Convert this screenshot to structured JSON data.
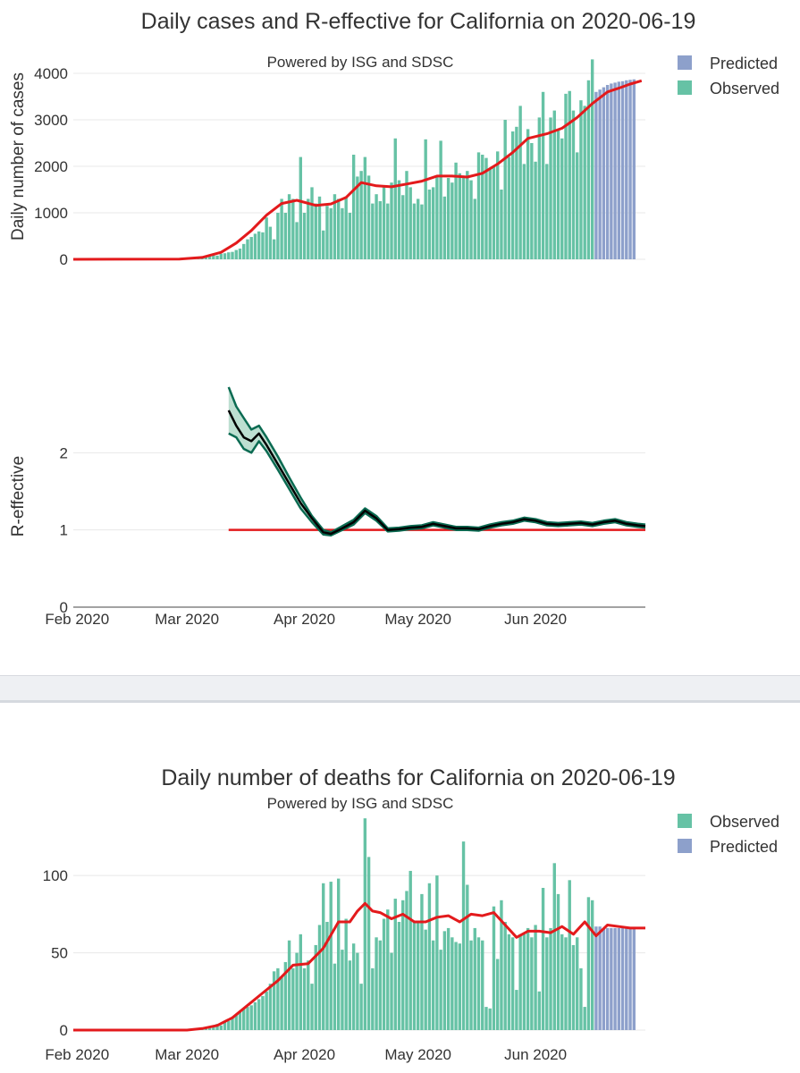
{
  "colors": {
    "observed": "#66c2a5",
    "predicted": "#8da0cb",
    "trend": "#e31a1c",
    "reff_band_fill": "#bddfd1",
    "reff_band_line": "#0b6b52",
    "reff_line": "#000000",
    "grid": "#e8e8e8"
  },
  "chart_data": [
    {
      "type": "bar",
      "name": "cases",
      "title": "Daily cases and R-effective for California on 2020-06-19",
      "annotation": "Powered by ISG and SDSC",
      "ylabel": "Daily number of cases",
      "ylim": [
        0,
        4500
      ],
      "yticks": [
        0,
        1000,
        2000,
        3000,
        4000
      ],
      "xrange": [
        "2020-01-31",
        "2020-06-30"
      ],
      "legend": [
        "Predicted",
        "Observed"
      ],
      "observed_start": "2020-02-28",
      "observed": [
        10,
        15,
        20,
        25,
        35,
        30,
        45,
        55,
        70,
        90,
        80,
        120,
        130,
        150,
        160,
        200,
        230,
        330,
        430,
        480,
        550,
        600,
        580,
        900,
        700,
        430,
        1000,
        1300,
        1000,
        1400,
        1300,
        800,
        2200,
        1000,
        1300,
        1550,
        1200,
        1350,
        620,
        1150,
        1100,
        1400,
        1300,
        1100,
        1330,
        1000,
        2250,
        1780,
        1900,
        2200,
        1800,
        1200,
        1400,
        1250,
        1580,
        1200,
        1650,
        2600,
        1700,
        1380,
        1900,
        1550,
        1200,
        1300,
        1180,
        2580,
        1500,
        1550,
        1800,
        2550,
        1350,
        1750,
        1650,
        2080,
        1850,
        1800,
        1900,
        1700,
        1300,
        2300,
        2250,
        2180,
        1950,
        2000,
        2320,
        1500,
        3000,
        2200,
        2750,
        2850,
        3300,
        2050,
        2800,
        2500,
        2100,
        3050,
        3600,
        2050,
        3050,
        3200,
        2800,
        2600,
        3560,
        3620,
        3200,
        2300,
        3420,
        3300,
        3850,
        4300
      ],
      "predicted": [
        3600,
        3650,
        3700,
        3750,
        3780,
        3800,
        3820,
        3830,
        3850,
        3860,
        3870
      ],
      "trend_dates": [
        "2020-01-31",
        "2020-02-28",
        "2020-03-05",
        "2020-03-10",
        "2020-03-14",
        "2020-03-18",
        "2020-03-22",
        "2020-03-26",
        "2020-03-30",
        "2020-04-04",
        "2020-04-08",
        "2020-04-12",
        "2020-04-16",
        "2020-04-20",
        "2020-04-24",
        "2020-04-28",
        "2020-05-02",
        "2020-05-06",
        "2020-05-10",
        "2020-05-14",
        "2020-05-18",
        "2020-05-22",
        "2020-05-26",
        "2020-05-30",
        "2020-06-04",
        "2020-06-08",
        "2020-06-12",
        "2020-06-16",
        "2020-06-20",
        "2020-06-23",
        "2020-06-26",
        "2020-06-29"
      ],
      "trend_values": [
        0,
        5,
        40,
        150,
        350,
        620,
        950,
        1200,
        1270,
        1160,
        1190,
        1330,
        1650,
        1580,
        1560,
        1620,
        1680,
        1790,
        1790,
        1770,
        1850,
        2050,
        2300,
        2600,
        2700,
        2820,
        3050,
        3350,
        3600,
        3680,
        3770,
        3840
      ]
    },
    {
      "type": "line",
      "name": "r_effective",
      "ylabel": "R-effective",
      "ylim": [
        0,
        3
      ],
      "yticks": [
        0,
        1,
        2
      ],
      "xrange": [
        "2020-01-31",
        "2020-06-30"
      ],
      "xtick_labels": [
        "Feb 2020",
        "Mar 2020",
        "Apr 2020",
        "May 2020",
        "Jun 2020"
      ],
      "xtick_dates": [
        "2020-02-01",
        "2020-03-01",
        "2020-04-01",
        "2020-05-01",
        "2020-06-01"
      ],
      "reference": {
        "value": 1,
        "from": "2020-03-12",
        "to": "2020-06-30"
      },
      "dates": [
        "2020-03-12",
        "2020-03-14",
        "2020-03-16",
        "2020-03-18",
        "2020-03-20",
        "2020-03-22",
        "2020-03-25",
        "2020-03-28",
        "2020-03-31",
        "2020-04-03",
        "2020-04-06",
        "2020-04-08",
        "2020-04-11",
        "2020-04-14",
        "2020-04-17",
        "2020-04-20",
        "2020-04-23",
        "2020-04-26",
        "2020-04-29",
        "2020-05-02",
        "2020-05-05",
        "2020-05-08",
        "2020-05-11",
        "2020-05-14",
        "2020-05-17",
        "2020-05-20",
        "2020-05-23",
        "2020-05-26",
        "2020-05-29",
        "2020-06-01",
        "2020-06-04",
        "2020-06-07",
        "2020-06-10",
        "2020-06-13",
        "2020-06-16",
        "2020-06-19",
        "2020-06-22",
        "2020-06-25",
        "2020-06-28",
        "2020-06-30"
      ],
      "r": [
        2.55,
        2.35,
        2.2,
        2.15,
        2.25,
        2.1,
        1.85,
        1.6,
        1.35,
        1.15,
        0.97,
        0.95,
        1.02,
        1.1,
        1.25,
        1.15,
        1.0,
        1.01,
        1.03,
        1.04,
        1.08,
        1.05,
        1.02,
        1.02,
        1.01,
        1.05,
        1.08,
        1.1,
        1.14,
        1.12,
        1.08,
        1.07,
        1.08,
        1.09,
        1.07,
        1.1,
        1.12,
        1.08,
        1.06,
        1.05
      ],
      "r_upper": [
        2.85,
        2.6,
        2.45,
        2.3,
        2.35,
        2.2,
        1.95,
        1.68,
        1.42,
        1.18,
        1.0,
        0.97,
        1.05,
        1.13,
        1.28,
        1.18,
        1.02,
        1.03,
        1.05,
        1.06,
        1.1,
        1.07,
        1.04,
        1.04,
        1.03,
        1.07,
        1.1,
        1.12,
        1.16,
        1.14,
        1.1,
        1.09,
        1.1,
        1.11,
        1.09,
        1.12,
        1.14,
        1.1,
        1.08,
        1.07
      ],
      "r_lower": [
        2.25,
        2.2,
        2.05,
        2.0,
        2.15,
        2.02,
        1.78,
        1.53,
        1.28,
        1.1,
        0.94,
        0.93,
        1.0,
        1.07,
        1.22,
        1.12,
        0.98,
        0.99,
        1.01,
        1.02,
        1.06,
        1.03,
        1.0,
        1.0,
        0.99,
        1.03,
        1.06,
        1.08,
        1.12,
        1.1,
        1.06,
        1.05,
        1.06,
        1.07,
        1.05,
        1.08,
        1.1,
        1.06,
        1.04,
        1.03
      ]
    },
    {
      "type": "bar",
      "name": "deaths",
      "title": "Daily number of deaths for California on 2020-06-19",
      "annotation": "Powered by ISG and SDSC",
      "ylabel": "",
      "ylim": [
        0,
        140
      ],
      "yticks": [
        0,
        50,
        100
      ],
      "xrange": [
        "2020-01-31",
        "2020-06-30"
      ],
      "xtick_labels": [
        "Feb 2020",
        "Mar 2020",
        "Apr 2020",
        "May 2020",
        "Jun 2020"
      ],
      "xtick_dates": [
        "2020-02-01",
        "2020-03-01",
        "2020-04-01",
        "2020-05-01",
        "2020-06-01"
      ],
      "legend": [
        "Observed",
        "Predicted"
      ],
      "observed_start": "2020-03-04",
      "observed": [
        1,
        1,
        2,
        2,
        3,
        4,
        3,
        5,
        6,
        8,
        10,
        12,
        14,
        15,
        16,
        18,
        20,
        22,
        25,
        30,
        38,
        40,
        34,
        44,
        58,
        40,
        50,
        62,
        40,
        45,
        30,
        55,
        68,
        95,
        70,
        96,
        43,
        98,
        52,
        72,
        45,
        56,
        50,
        30,
        137,
        112,
        40,
        60,
        58,
        72,
        78,
        50,
        85,
        70,
        84,
        90,
        103,
        70,
        70,
        88,
        65,
        95,
        58,
        100,
        52,
        64,
        66,
        60,
        57,
        56,
        122,
        94,
        58,
        66,
        60,
        58,
        15,
        14,
        80,
        46,
        84,
        70,
        62,
        60,
        26,
        62,
        62,
        66,
        60,
        68,
        25,
        92,
        60,
        66,
        108,
        88,
        62,
        60,
        97,
        55,
        60,
        40,
        15,
        86,
        84
      ],
      "predicted": [
        67,
        67,
        66,
        66,
        66,
        66,
        66,
        66,
        66,
        66,
        66
      ],
      "trend_dates": [
        "2020-01-31",
        "2020-03-01",
        "2020-03-05",
        "2020-03-09",
        "2020-03-13",
        "2020-03-17",
        "2020-03-21",
        "2020-03-25",
        "2020-03-29",
        "2020-04-02",
        "2020-04-06",
        "2020-04-10",
        "2020-04-13",
        "2020-04-15",
        "2020-04-17",
        "2020-04-19",
        "2020-04-21",
        "2020-04-24",
        "2020-04-27",
        "2020-04-30",
        "2020-05-03",
        "2020-05-06",
        "2020-05-09",
        "2020-05-12",
        "2020-05-15",
        "2020-05-18",
        "2020-05-21",
        "2020-05-24",
        "2020-05-27",
        "2020-05-30",
        "2020-06-02",
        "2020-06-05",
        "2020-06-08",
        "2020-06-11",
        "2020-06-14",
        "2020-06-17",
        "2020-06-20",
        "2020-06-23",
        "2020-06-26",
        "2020-06-30"
      ],
      "trend_values": [
        0,
        0,
        1,
        3,
        8,
        16,
        24,
        32,
        42,
        43,
        53,
        70,
        70,
        77,
        82,
        77,
        76,
        72,
        75,
        70,
        70,
        73,
        74,
        70,
        75,
        74,
        76,
        68,
        60,
        64,
        64,
        63,
        67,
        62,
        70,
        61,
        68,
        67,
        66,
        66
      ]
    }
  ]
}
